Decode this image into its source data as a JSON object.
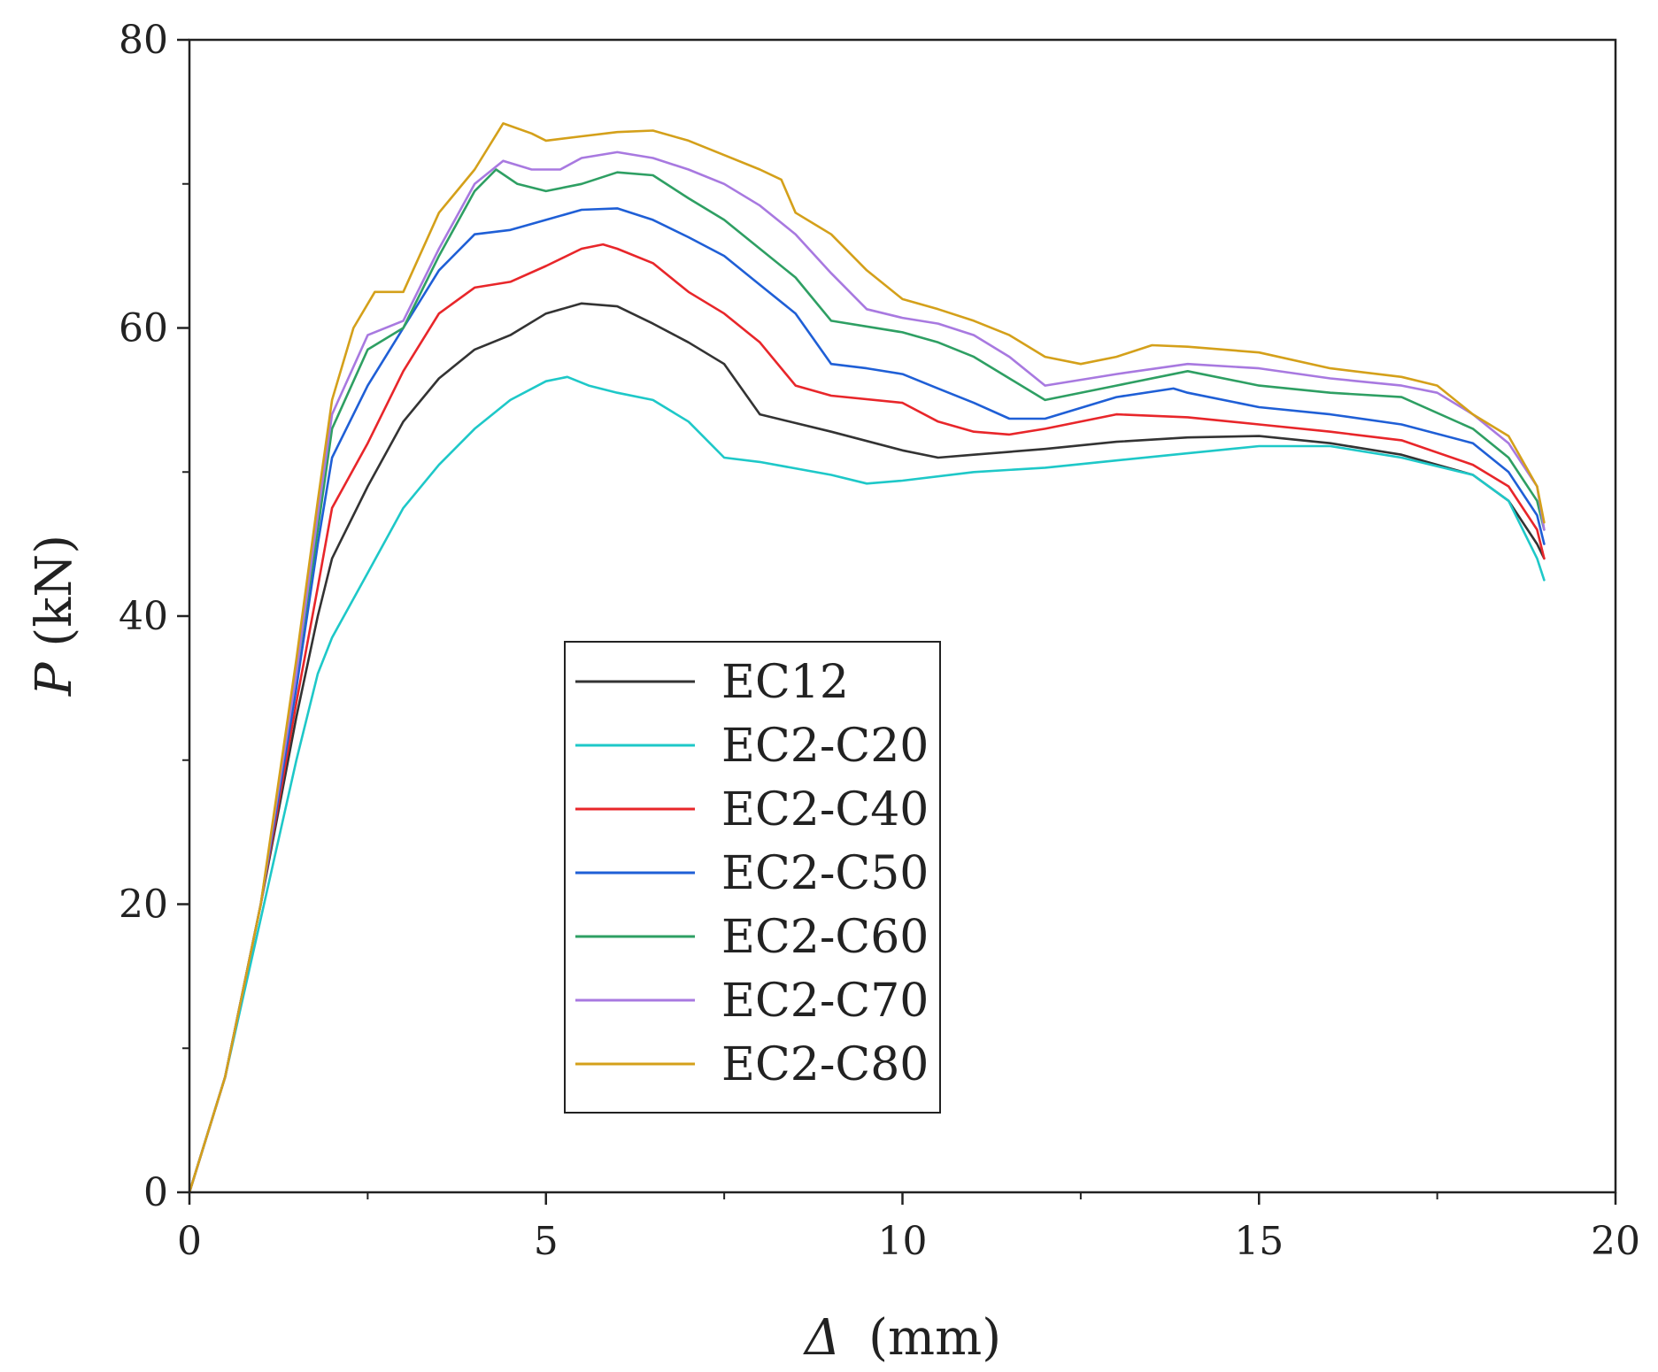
{
  "chart_data": {
    "type": "line",
    "title": "",
    "xlabel": "Δ (mm)",
    "ylabel": "P(kN)",
    "xlabel_symbol": "Δ",
    "xlabel_unit": "(mm)",
    "ylabel_symbol": "P",
    "ylabel_unit": "(kN)",
    "xlim": [
      0,
      20
    ],
    "ylim": [
      0,
      80
    ],
    "xticks": [
      0,
      5,
      10,
      15,
      20
    ],
    "yticks": [
      0,
      20,
      40,
      60,
      80
    ],
    "grid": false,
    "legend_position": "center-left",
    "series": [
      {
        "name": "EC12",
        "color": "#333333",
        "points": [
          [
            0,
            0
          ],
          [
            0.5,
            8
          ],
          [
            1,
            20
          ],
          [
            1.5,
            33
          ],
          [
            1.8,
            40
          ],
          [
            2,
            44
          ],
          [
            2.5,
            49
          ],
          [
            3,
            53.5
          ],
          [
            3.5,
            56.5
          ],
          [
            4,
            58.5
          ],
          [
            4.5,
            59.5
          ],
          [
            5,
            61
          ],
          [
            5.5,
            61.7
          ],
          [
            6,
            61.5
          ],
          [
            6.5,
            60.3
          ],
          [
            7,
            59
          ],
          [
            7.5,
            57.5
          ],
          [
            8,
            54
          ],
          [
            9,
            52.8
          ],
          [
            10,
            51.5
          ],
          [
            10.5,
            51
          ],
          [
            11,
            51.2
          ],
          [
            12,
            51.6
          ],
          [
            13,
            52.1
          ],
          [
            14,
            52.4
          ],
          [
            15,
            52.5
          ],
          [
            16,
            52
          ],
          [
            17,
            51.2
          ],
          [
            18,
            49.8
          ],
          [
            18.5,
            48
          ],
          [
            18.9,
            45
          ],
          [
            19,
            44
          ]
        ]
      },
      {
        "name": "EC2-C20",
        "color": "#1ec8c8",
        "points": [
          [
            0,
            0
          ],
          [
            0.5,
            8
          ],
          [
            1,
            19
          ],
          [
            1.5,
            30
          ],
          [
            1.8,
            36
          ],
          [
            2,
            38.5
          ],
          [
            2.5,
            43
          ],
          [
            3,
            47.5
          ],
          [
            3.5,
            50.5
          ],
          [
            4,
            53
          ],
          [
            4.5,
            55
          ],
          [
            5,
            56.3
          ],
          [
            5.3,
            56.6
          ],
          [
            5.6,
            56
          ],
          [
            6,
            55.5
          ],
          [
            6.5,
            55
          ],
          [
            7,
            53.5
          ],
          [
            7.5,
            51
          ],
          [
            8,
            50.7
          ],
          [
            9,
            49.8
          ],
          [
            9.5,
            49.2
          ],
          [
            10,
            49.4
          ],
          [
            11,
            50
          ],
          [
            12,
            50.3
          ],
          [
            13,
            50.8
          ],
          [
            14,
            51.3
          ],
          [
            15,
            51.8
          ],
          [
            16,
            51.8
          ],
          [
            17,
            51
          ],
          [
            18,
            49.8
          ],
          [
            18.5,
            48
          ],
          [
            18.9,
            44
          ],
          [
            19,
            42.5
          ]
        ]
      },
      {
        "name": "EC2-C40",
        "color": "#e8262a",
        "points": [
          [
            0,
            0
          ],
          [
            0.5,
            8
          ],
          [
            1,
            20
          ],
          [
            1.5,
            34
          ],
          [
            1.8,
            42
          ],
          [
            2,
            47.5
          ],
          [
            2.5,
            52
          ],
          [
            3,
            57
          ],
          [
            3.5,
            61
          ],
          [
            4,
            62.8
          ],
          [
            4.5,
            63.2
          ],
          [
            5,
            64.3
          ],
          [
            5.5,
            65.5
          ],
          [
            5.8,
            65.8
          ],
          [
            6,
            65.5
          ],
          [
            6.5,
            64.5
          ],
          [
            7,
            62.5
          ],
          [
            7.5,
            61
          ],
          [
            8,
            59
          ],
          [
            8.5,
            56
          ],
          [
            9,
            55.3
          ],
          [
            10,
            54.8
          ],
          [
            10.5,
            53.5
          ],
          [
            11,
            52.8
          ],
          [
            11.5,
            52.6
          ],
          [
            12,
            53
          ],
          [
            13,
            54
          ],
          [
            14,
            53.8
          ],
          [
            15,
            53.3
          ],
          [
            16,
            52.8
          ],
          [
            17,
            52.2
          ],
          [
            18,
            50.5
          ],
          [
            18.5,
            49
          ],
          [
            18.9,
            46
          ],
          [
            19,
            44
          ]
        ]
      },
      {
        "name": "EC2-C50",
        "color": "#1f5fd6",
        "points": [
          [
            0,
            0
          ],
          [
            0.5,
            8
          ],
          [
            1,
            20
          ],
          [
            1.5,
            35
          ],
          [
            1.8,
            45
          ],
          [
            2,
            51
          ],
          [
            2.5,
            56
          ],
          [
            3,
            60
          ],
          [
            3.5,
            64
          ],
          [
            4,
            66.5
          ],
          [
            4.5,
            66.8
          ],
          [
            5,
            67.5
          ],
          [
            5.5,
            68.2
          ],
          [
            6,
            68.3
          ],
          [
            6.5,
            67.5
          ],
          [
            7,
            66.3
          ],
          [
            7.5,
            65
          ],
          [
            8,
            63
          ],
          [
            8.5,
            61
          ],
          [
            9,
            57.5
          ],
          [
            9.5,
            57.2
          ],
          [
            10,
            56.8
          ],
          [
            10.5,
            55.8
          ],
          [
            11,
            54.8
          ],
          [
            11.5,
            53.7
          ],
          [
            12,
            53.7
          ],
          [
            13,
            55.2
          ],
          [
            13.8,
            55.8
          ],
          [
            14,
            55.5
          ],
          [
            15,
            54.5
          ],
          [
            16,
            54
          ],
          [
            17,
            53.3
          ],
          [
            18,
            52
          ],
          [
            18.5,
            50
          ],
          [
            18.9,
            47
          ],
          [
            19,
            45
          ]
        ]
      },
      {
        "name": "EC2-C60",
        "color": "#2e9f63",
        "points": [
          [
            0,
            0
          ],
          [
            0.5,
            8
          ],
          [
            1,
            20
          ],
          [
            1.5,
            36
          ],
          [
            1.8,
            46
          ],
          [
            2,
            53
          ],
          [
            2.5,
            58.5
          ],
          [
            3,
            60
          ],
          [
            3.5,
            65
          ],
          [
            4,
            69.5
          ],
          [
            4.3,
            71
          ],
          [
            4.6,
            70
          ],
          [
            5,
            69.5
          ],
          [
            5.5,
            70
          ],
          [
            6,
            70.8
          ],
          [
            6.5,
            70.6
          ],
          [
            7,
            69
          ],
          [
            7.5,
            67.5
          ],
          [
            8,
            65.5
          ],
          [
            8.5,
            63.5
          ],
          [
            9,
            60.5
          ],
          [
            10,
            59.7
          ],
          [
            10.5,
            59
          ],
          [
            11,
            58
          ],
          [
            11.5,
            56.5
          ],
          [
            12,
            55
          ],
          [
            13,
            56
          ],
          [
            14,
            57
          ],
          [
            15,
            56
          ],
          [
            16,
            55.5
          ],
          [
            17,
            55.2
          ],
          [
            18,
            53
          ],
          [
            18.5,
            51
          ],
          [
            18.9,
            48
          ],
          [
            19,
            46
          ]
        ]
      },
      {
        "name": "EC2-C70",
        "color": "#a879e0",
        "points": [
          [
            0,
            0
          ],
          [
            0.5,
            8
          ],
          [
            1,
            20
          ],
          [
            1.5,
            36
          ],
          [
            1.8,
            47
          ],
          [
            2,
            54
          ],
          [
            2.5,
            59.5
          ],
          [
            3,
            60.5
          ],
          [
            3.5,
            65.5
          ],
          [
            4,
            70
          ],
          [
            4.4,
            71.6
          ],
          [
            4.8,
            71
          ],
          [
            5.2,
            71
          ],
          [
            5.5,
            71.8
          ],
          [
            6,
            72.2
          ],
          [
            6.5,
            71.8
          ],
          [
            7,
            71
          ],
          [
            7.5,
            70
          ],
          [
            8,
            68.5
          ],
          [
            8.5,
            66.5
          ],
          [
            9,
            63.8
          ],
          [
            9.5,
            61.3
          ],
          [
            10,
            60.7
          ],
          [
            10.5,
            60.3
          ],
          [
            11,
            59.5
          ],
          [
            11.5,
            58
          ],
          [
            12,
            56
          ],
          [
            13,
            56.8
          ],
          [
            14,
            57.5
          ],
          [
            15,
            57.2
          ],
          [
            16,
            56.5
          ],
          [
            17,
            56
          ],
          [
            17.5,
            55.5
          ],
          [
            18,
            54
          ],
          [
            18.5,
            52
          ],
          [
            18.9,
            49
          ],
          [
            19,
            46
          ]
        ]
      },
      {
        "name": "EC2-C80",
        "color": "#d4a01a",
        "points": [
          [
            0,
            0
          ],
          [
            0.5,
            8
          ],
          [
            1,
            20
          ],
          [
            1.5,
            37
          ],
          [
            1.8,
            48
          ],
          [
            2,
            55
          ],
          [
            2.3,
            60
          ],
          [
            2.6,
            62.5
          ],
          [
            3,
            62.5
          ],
          [
            3.5,
            68
          ],
          [
            4,
            71
          ],
          [
            4.4,
            74.2
          ],
          [
            4.8,
            73.5
          ],
          [
            5,
            73
          ],
          [
            5.5,
            73.3
          ],
          [
            6,
            73.6
          ],
          [
            6.5,
            73.7
          ],
          [
            7,
            73
          ],
          [
            7.5,
            72
          ],
          [
            8,
            71
          ],
          [
            8.3,
            70.3
          ],
          [
            8.5,
            68
          ],
          [
            9,
            66.5
          ],
          [
            9.5,
            64
          ],
          [
            10,
            62
          ],
          [
            10.5,
            61.3
          ],
          [
            11,
            60.5
          ],
          [
            11.5,
            59.5
          ],
          [
            12,
            58
          ],
          [
            12.5,
            57.5
          ],
          [
            13,
            58
          ],
          [
            13.5,
            58.8
          ],
          [
            14,
            58.7
          ],
          [
            15,
            58.3
          ],
          [
            16,
            57.2
          ],
          [
            17,
            56.6
          ],
          [
            17.5,
            56
          ],
          [
            18,
            54
          ],
          [
            18.5,
            52.5
          ],
          [
            18.9,
            49
          ],
          [
            19,
            46.5
          ]
        ]
      }
    ]
  }
}
